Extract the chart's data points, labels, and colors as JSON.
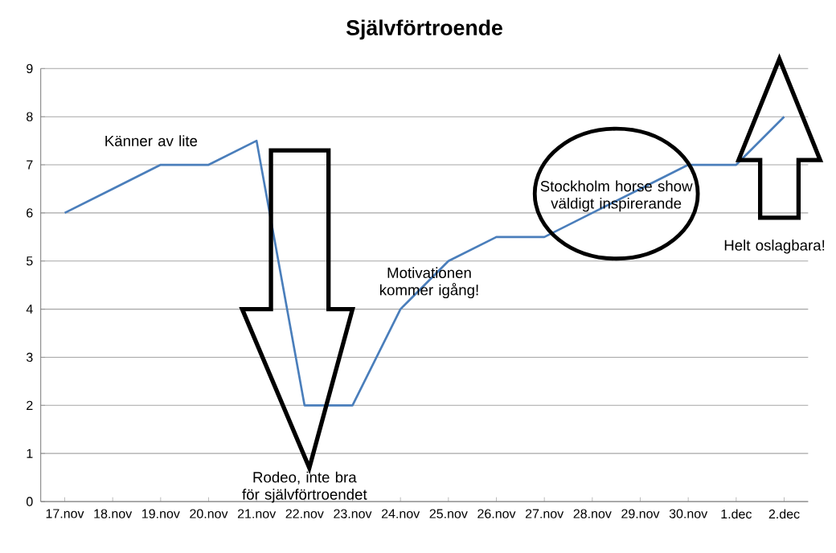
{
  "chart_data": {
    "type": "line",
    "title": "Självförtroende",
    "categories": [
      "17.nov",
      "18.nov",
      "19.nov",
      "20.nov",
      "21.nov",
      "22.nov",
      "23.nov",
      "24.nov",
      "25.nov",
      "26.nov",
      "27.nov",
      "28.nov",
      "29.nov",
      "30.nov",
      "1.dec",
      "2.dec"
    ],
    "values": [
      6,
      6.5,
      7,
      7,
      7.5,
      2,
      2,
      4,
      5,
      5.5,
      5.5,
      6,
      6.5,
      7,
      7,
      8
    ],
    "color": "#4a7ebb",
    "ylim": [
      0,
      9
    ],
    "yticks": [
      0,
      1,
      2,
      3,
      4,
      5,
      6,
      7,
      8,
      9
    ],
    "grid": "y",
    "marker": "none",
    "line_style": "solid",
    "annotations": [
      "Känner av lite",
      "Rodeo, inte bra för självförtroendet",
      "Motivationen kommer igång!",
      "Stockholm horse show väldigt inspirerande",
      "Helt oslagbara!"
    ]
  }
}
